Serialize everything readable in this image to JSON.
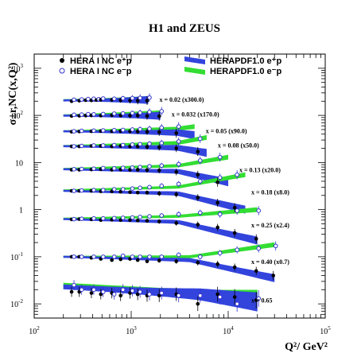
{
  "title": "H1 and ZEUS",
  "chart_data": {
    "type": "scatter",
    "xscale": "log",
    "yscale": "log",
    "xlim": [
      100,
      100000
    ],
    "ylim": [
      0.005,
      2000
    ],
    "xlabel": "Q²/ GeV²",
    "ylabel": "σ±r,NC(x,Q²)",
    "x_ticks": [
      {
        "value": 100,
        "base": "10",
        "exp": "2"
      },
      {
        "value": 1000,
        "base": "10",
        "exp": "3"
      },
      {
        "value": 10000,
        "base": "10",
        "exp": "4"
      },
      {
        "value": 100000,
        "base": "10",
        "exp": "5"
      }
    ],
    "y_ticks": [
      {
        "value": 0.01,
        "base": "10",
        "exp": "-2"
      },
      {
        "value": 0.1,
        "base": "10",
        "exp": "-1"
      },
      {
        "value": 1,
        "base": "1",
        "exp": ""
      },
      {
        "value": 10,
        "base": "10",
        "exp": ""
      },
      {
        "value": 100,
        "base": "10",
        "exp": "2"
      },
      {
        "value": 1000,
        "base": "10",
        "exp": "3"
      }
    ],
    "legend": [
      {
        "label": "HERA I NC e⁺p",
        "kind": "filled-marker",
        "color": "#000000"
      },
      {
        "label": "HERA I NC e⁻p",
        "kind": "open-marker",
        "color": "#3333cc"
      },
      {
        "label": "HERAPDF1.0   e⁺p",
        "kind": "band",
        "color": "#3344dd"
      },
      {
        "label": "HERAPDF1.0   e⁻p",
        "kind": "band",
        "color": "#33dd33"
      }
    ],
    "colors": {
      "e_plus_data": "#000000",
      "e_minus_data": "#3333cc",
      "e_plus_band": "#3344dd",
      "e_minus_band": "#33dd33"
    },
    "series": [
      {
        "label": "x = 0.02  (x300.0)",
        "q2": [
          250,
          300,
          350,
          400,
          450,
          500,
          650,
          800,
          1000,
          1200,
          1500
        ],
        "e_plus": [
          200,
          205,
          210,
          208,
          212,
          215,
          213,
          210,
          208,
          205,
          206
        ],
        "e_minus": [
          215,
          218,
          222,
          225,
          220,
          228,
          226,
          230,
          232,
          235,
          238
        ],
        "band_plus": [
          [
            200,
            208
          ],
          [
            1500,
            212
          ]
        ],
        "band_minus": [
          [
            200,
            210
          ],
          [
            1500,
            228
          ]
        ]
      },
      {
        "label": "x = 0.032  (x170.0)",
        "q2": [
          250,
          300,
          350,
          400,
          500,
          650,
          800,
          1000,
          1200,
          1500,
          2000
        ],
        "e_plus": [
          97,
          98,
          99,
          100,
          99,
          101,
          100,
          99,
          100,
          97,
          96
        ],
        "e_minus": [
          103,
          104,
          106,
          105,
          107,
          109,
          110,
          112,
          114,
          118,
          122
        ],
        "band_plus": [
          [
            200,
            99
          ],
          [
            2000,
            98
          ]
        ],
        "band_minus": [
          [
            200,
            100
          ],
          [
            2000,
            114
          ]
        ]
      },
      {
        "label": "x = 0.05  (x90.0)",
        "q2": [
          250,
          300,
          400,
          500,
          650,
          800,
          1000,
          1200,
          1500,
          2000,
          3000
        ],
        "e_plus": [
          45,
          45.5,
          46,
          46.5,
          46,
          46.5,
          46,
          45.5,
          45,
          44,
          42
        ],
        "e_minus": [
          46,
          47,
          47.5,
          48,
          48.5,
          49,
          50,
          51,
          52,
          55,
          58
        ],
        "band_plus": [
          [
            200,
            46
          ],
          [
            3000,
            43
          ],
          [
            4500,
            38
          ]
        ],
        "band_minus": [
          [
            200,
            46
          ],
          [
            3000,
            52
          ],
          [
            4500,
            58
          ]
        ]
      },
      {
        "label": "x = 0.08  (x50.0)",
        "q2": [
          250,
          300,
          400,
          500,
          650,
          800,
          1000,
          1200,
          1500,
          2000,
          3000,
          5000
        ],
        "e_plus": [
          22,
          22,
          22.5,
          22.5,
          22,
          22.5,
          22,
          22,
          21.5,
          21,
          20,
          17
        ],
        "e_minus": [
          22,
          22.5,
          23,
          23,
          23.5,
          23.5,
          24,
          24.5,
          25,
          26,
          28,
          32
        ],
        "band_plus": [
          [
            200,
            22.2
          ],
          [
            3000,
            20.5
          ],
          [
            6000,
            16
          ]
        ],
        "band_minus": [
          [
            200,
            22.3
          ],
          [
            3000,
            26
          ],
          [
            6000,
            34
          ]
        ]
      },
      {
        "label": "x = 0.13  (x20.0)",
        "q2": [
          250,
          300,
          400,
          500,
          650,
          800,
          1000,
          1200,
          1500,
          2000,
          3000,
          5000,
          8000
        ],
        "e_plus": [
          7,
          7,
          7.1,
          7.2,
          7.0,
          7.1,
          7.0,
          7.0,
          6.9,
          6.8,
          6.3,
          5.5,
          3.8
        ],
        "e_minus": [
          7.2,
          7.3,
          7.4,
          7.6,
          7.5,
          7.7,
          7.8,
          8.0,
          8.3,
          8.6,
          9.2,
          11,
          13
        ],
        "band_plus": [
          [
            200,
            7.2
          ],
          [
            3000,
            6.5
          ],
          [
            10000,
            3.8
          ]
        ],
        "band_minus": [
          [
            200,
            7.3
          ],
          [
            3000,
            8.5
          ],
          [
            10000,
            13
          ]
        ]
      },
      {
        "label": "x = 0.18  (x8.0)",
        "q2": [
          250,
          300,
          400,
          500,
          650,
          800,
          1000,
          1200,
          1500,
          2000,
          3000,
          5000,
          8000,
          12000
        ],
        "e_plus": [
          2.5,
          2.5,
          2.5,
          2.45,
          2.45,
          2.4,
          2.35,
          2.3,
          2.3,
          2.2,
          2.1,
          1.8,
          1.4,
          1.1
        ],
        "e_minus": [
          2.5,
          2.55,
          2.6,
          2.6,
          2.7,
          2.7,
          2.8,
          2.9,
          3,
          3.2,
          3.5,
          4,
          4.8,
          5.5
        ],
        "band_plus": [
          [
            200,
            2.5
          ],
          [
            3000,
            2.2
          ],
          [
            15000,
            1.0
          ]
        ],
        "band_minus": [
          [
            200,
            2.55
          ],
          [
            3000,
            3.0
          ],
          [
            15000,
            5.5
          ]
        ]
      },
      {
        "label": "x = 0.25  (x2.4)",
        "q2": [
          250,
          300,
          400,
          500,
          650,
          800,
          1000,
          1200,
          1500,
          2000,
          3000,
          5000,
          8000,
          12000,
          20000
        ],
        "e_plus": [
          0.62,
          0.63,
          0.62,
          0.6,
          0.61,
          0.6,
          0.6,
          0.59,
          0.58,
          0.56,
          0.52,
          0.48,
          0.42,
          0.32,
          0.24
        ],
        "e_minus": [
          0.63,
          0.64,
          0.65,
          0.65,
          0.66,
          0.67,
          0.68,
          0.7,
          0.72,
          0.75,
          0.8,
          0.86,
          0.8,
          0.95,
          0.95
        ],
        "band_plus": [
          [
            200,
            0.63
          ],
          [
            3000,
            0.55
          ],
          [
            20000,
            0.22
          ]
        ],
        "band_minus": [
          [
            200,
            0.64
          ],
          [
            3000,
            0.72
          ],
          [
            20000,
            1.0
          ]
        ]
      },
      {
        "label": "x = 0.40  (x0.7)",
        "q2": [
          250,
          300,
          400,
          500,
          650,
          800,
          1000,
          1200,
          1500,
          2000,
          3000,
          5000,
          8000,
          12000,
          20000,
          30000
        ],
        "e_plus": [
          0.1,
          0.1,
          0.095,
          0.09,
          0.085,
          0.088,
          0.09,
          0.085,
          0.08,
          0.083,
          0.08,
          0.075,
          0.07,
          0.06,
          0.05,
          0.04
        ],
        "e_minus": [
          0.1,
          0.1,
          0.1,
          0.1,
          0.1,
          0.105,
          0.1,
          0.1,
          0.1,
          0.1,
          0.11,
          0.1,
          0.12,
          0.14,
          0.15,
          0.17
        ],
        "band_plus": [
          [
            200,
            0.1
          ],
          [
            4000,
            0.085
          ],
          [
            30000,
            0.035
          ]
        ],
        "band_minus": [
          [
            200,
            0.1
          ],
          [
            4000,
            0.1
          ],
          [
            30000,
            0.18
          ]
        ]
      },
      {
        "label": "x = 0.65",
        "q2": [
          250,
          300,
          400,
          500,
          650,
          800,
          1000,
          1200,
          1500,
          2000,
          3000,
          5000,
          8000,
          12000,
          20000
        ],
        "e_plus": [
          0.018,
          0.018,
          0.017,
          0.016,
          0.017,
          0.015,
          0.017,
          0.016,
          0.015,
          0.015,
          0.016,
          0.01,
          0.016,
          0.014,
          0.012
        ],
        "e_minus": [
          0.025,
          0.02,
          0.02,
          0.018,
          0.016,
          0.02,
          0.019,
          0.018,
          0.016,
          0.017,
          0.015,
          0.015,
          0.014,
          0.01,
          0.013
        ],
        "band_plus": [
          [
            200,
            0.023
          ],
          [
            5000,
            0.016
          ],
          [
            20000,
            0.011
          ]
        ],
        "band_minus": [
          [
            200,
            0.024
          ],
          [
            5000,
            0.017
          ],
          [
            20000,
            0.017
          ]
        ]
      }
    ]
  }
}
